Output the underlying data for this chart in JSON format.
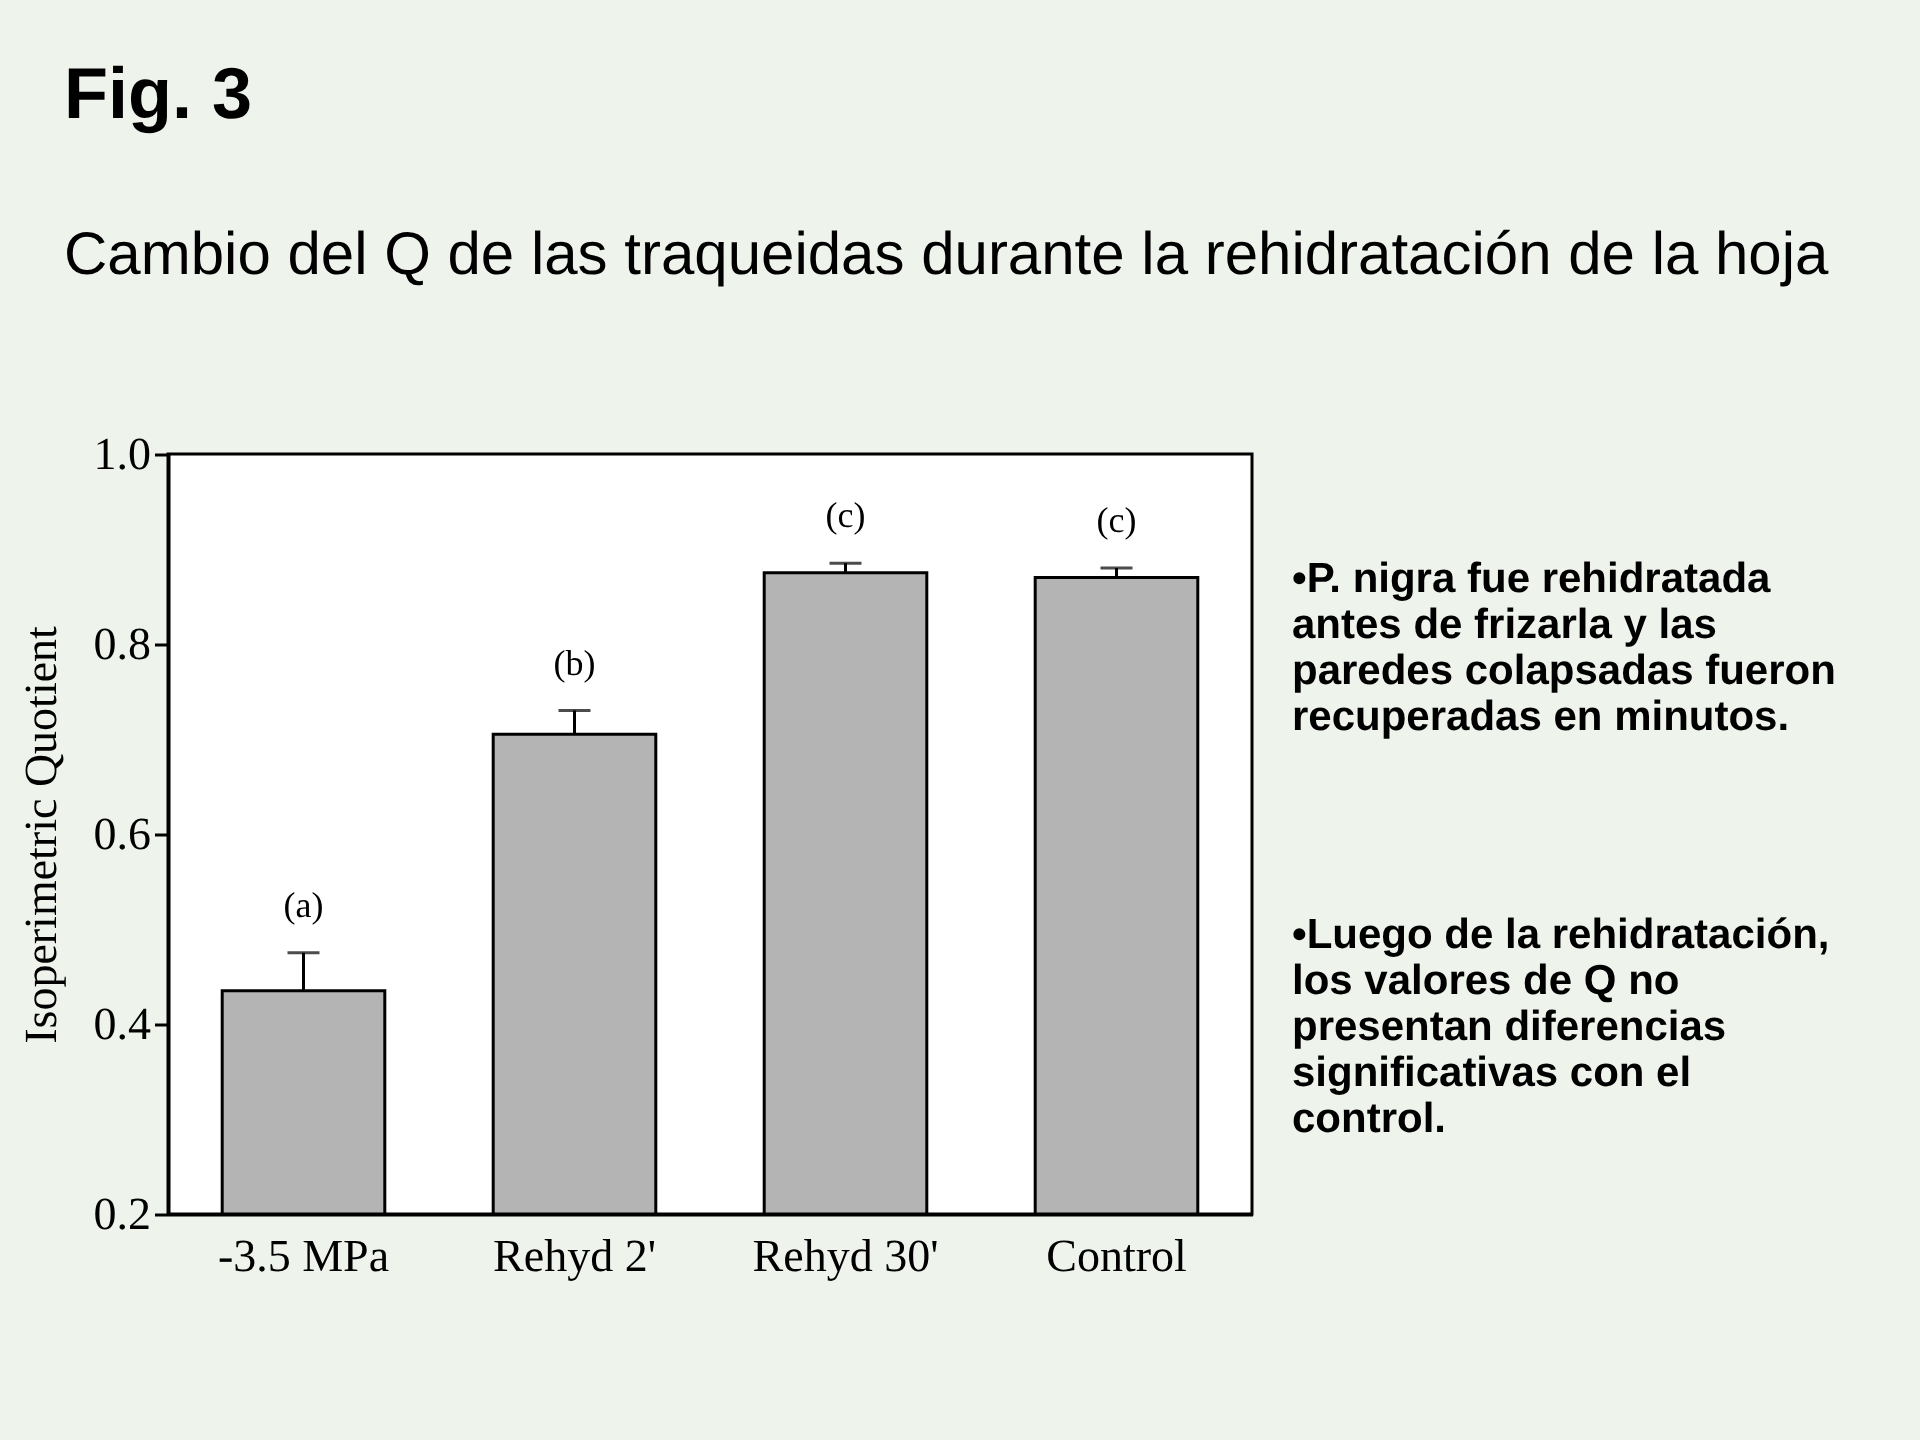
{
  "chart_data": {
    "type": "bar",
    "title": "Fig. 3",
    "subtitle": "Cambio del Q de las traqueidas durante la rehidratación de la hoja",
    "ylabel": "Isoperimetric Quotient",
    "categories": [
      "-3.5 MPa",
      "Rehyd 2'",
      "Rehyd 30'",
      "Control"
    ],
    "values": [
      0.435,
      0.705,
      0.875,
      0.87
    ],
    "errors": [
      [
        0.435,
        0.475
      ],
      [
        0.705,
        0.73
      ],
      [
        0.875,
        0.885
      ],
      [
        0.87,
        0.88
      ]
    ],
    "color": "#b4b4b4",
    "ylim": [
      0.2,
      1.0
    ],
    "yticks": [
      0.2,
      0.4,
      0.6,
      0.8,
      {
        "value": 1,
        "label": "1.0"
      }
    ],
    "annotations": [
      "(a)",
      "(b)",
      "(c)",
      "(c)",
      "•P. nigra fue rehidratada antes de frizarla y las paredes colapsadas fueron recuperadas en minutos.",
      "•Luego de la rehidratación, los valores de Q no presentan diferencias significativas con el control."
    ]
  }
}
